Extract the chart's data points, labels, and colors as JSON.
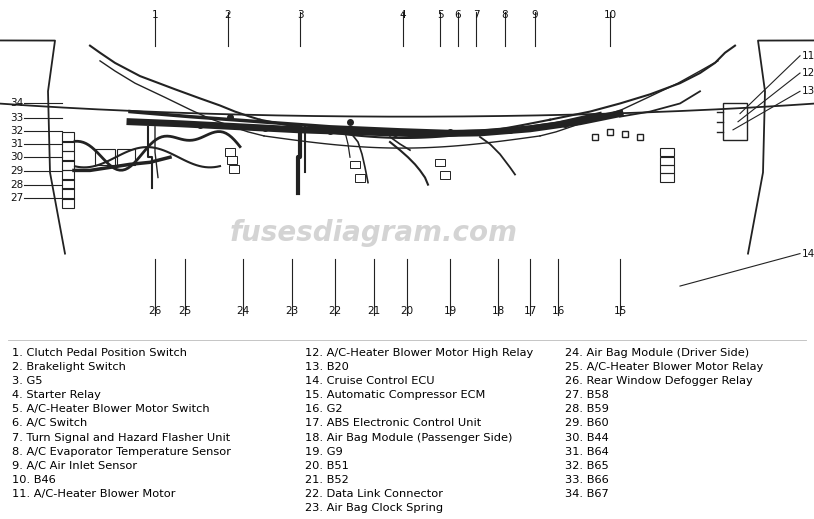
{
  "background_color": "#ffffff",
  "watermark": "fusesdiagram.com",
  "watermark_color": "#aaaaaa",
  "diagram_bg": "#f5f5f5",
  "col1_items": [
    "1. Clutch Pedal Position Switch",
    "2. Brakelight Switch",
    "3. G5",
    "4. Starter Relay",
    "5. A/C-Heater Blower Motor Switch",
    "6. A/C Switch",
    "7. Turn Signal and Hazard Flasher Unit",
    "8. A/C Evaporator Temperature Sensor",
    "9. A/C Air Inlet Sensor",
    "10. B46",
    "11. A/C-Heater Blower Motor"
  ],
  "col2_items": [
    "12. A/C-Heater Blower Motor High Relay",
    "13. B20",
    "14. Cruise Control ECU",
    "15. Automatic Compressor ECM",
    "16. G2",
    "17. ABS Electronic Control Unit",
    "18. Air Bag Module (Passenger Side)",
    "19. G9",
    "20. B51",
    "21. B52",
    "22. Data Link Connector",
    "23. Air Bag Clock Spring"
  ],
  "col3_items": [
    "24. Air Bag Module (Driver Side)",
    "25. A/C-Heater Blower Motor Relay",
    "26. Rear Window Defogger Relay",
    "27. B58",
    "28. B59",
    "29. B60",
    "30. B44",
    "31. B64",
    "32. B65",
    "33. B66",
    "34. B67"
  ],
  "font_size_legend": 8.2,
  "font_size_label": 7.5,
  "line_color": "#222222",
  "label_color": "#111111"
}
